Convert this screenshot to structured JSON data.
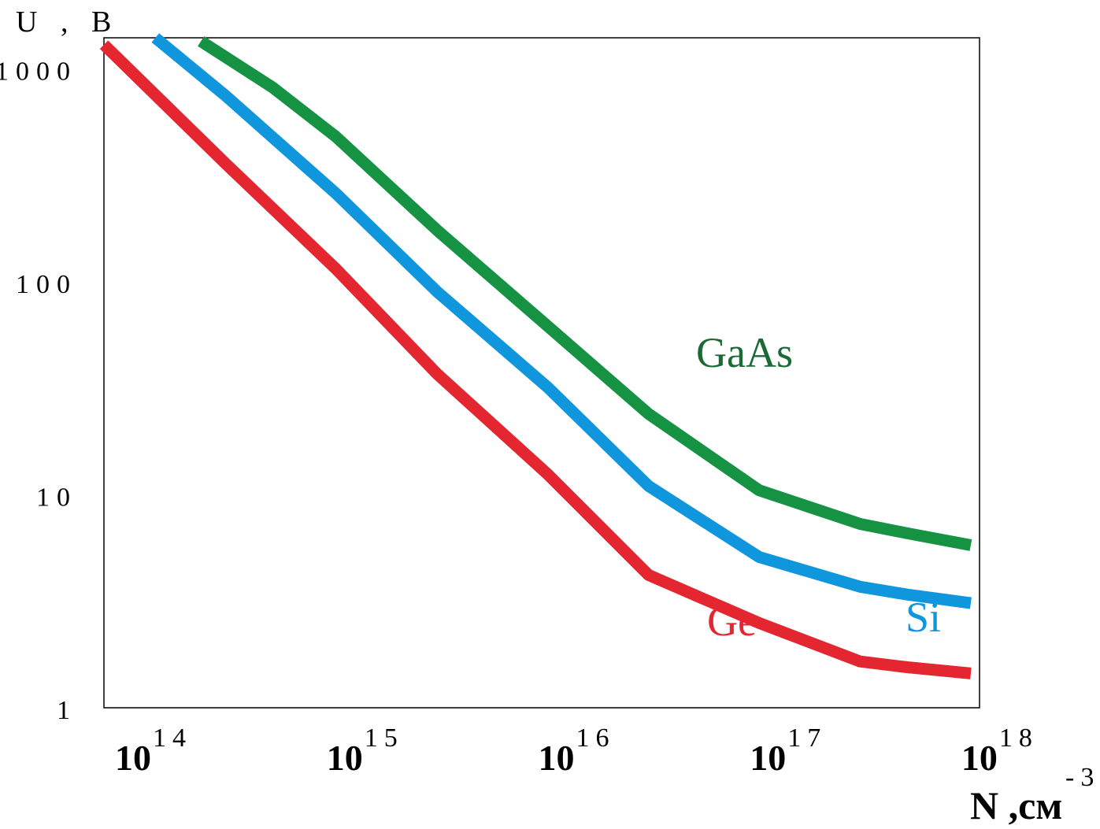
{
  "chart_data": {
    "type": "line",
    "title": "",
    "ylabel": "U , B",
    "xlabel_base": "N ,см",
    "xlabel_sup": "-3",
    "xscale": "log",
    "yscale": "log",
    "xlim": [
      80000000000000.0,
      1.1e+18
    ],
    "ylim": [
      1,
      1400
    ],
    "x_ticks": [
      {
        "value": 100000000000000.0,
        "base": "10",
        "exp": "14"
      },
      {
        "value": 1000000000000000.0,
        "base": "10",
        "exp": "15"
      },
      {
        "value": 1e+16,
        "base": "10",
        "exp": "16"
      },
      {
        "value": 1e+17,
        "base": "10",
        "exp": "17"
      },
      {
        "value": 1e+18,
        "base": "10",
        "exp": "18"
      }
    ],
    "y_ticks": [
      {
        "value": 1000,
        "label": "1000"
      },
      {
        "value": 100,
        "label": "100"
      },
      {
        "value": 10,
        "label": "10"
      },
      {
        "value": 1,
        "label": "1"
      }
    ],
    "grid": false,
    "series": [
      {
        "name": "Ge",
        "label": "Ge",
        "color": "#e3262f",
        "x": [
          80000000000000.0,
          300000000000000.0,
          1000000000000000.0,
          3000000000000000.0,
          1e+16,
          3e+16,
          1e+17,
          3e+17,
          5e+17,
          1e+18
        ],
        "y": [
          1300,
          360,
          115,
          37,
          12.5,
          4.2,
          2.5,
          1.65,
          1.55,
          1.45
        ]
      },
      {
        "name": "Si",
        "label": "Si",
        "color": "#0f96dc",
        "x": [
          140000000000000.0,
          300000000000000.0,
          1000000000000000.0,
          3000000000000000.0,
          1e+16,
          3e+16,
          1e+17,
          3e+17,
          5e+17,
          1e+18
        ],
        "y": [
          1400,
          750,
          260,
          90,
          32,
          11,
          5.1,
          3.7,
          3.4,
          3.1
        ]
      },
      {
        "name": "GaAs",
        "label": "GaAs",
        "color": "#159343",
        "x": [
          230000000000000.0,
          500000000000000.0,
          1000000000000000.0,
          3000000000000000.0,
          1e+16,
          3e+16,
          1e+17,
          3e+17,
          5e+17,
          1e+18
        ],
        "y": [
          1350,
          820,
          480,
          175,
          62,
          24,
          10.5,
          7.3,
          6.6,
          5.8
        ]
      }
    ]
  }
}
